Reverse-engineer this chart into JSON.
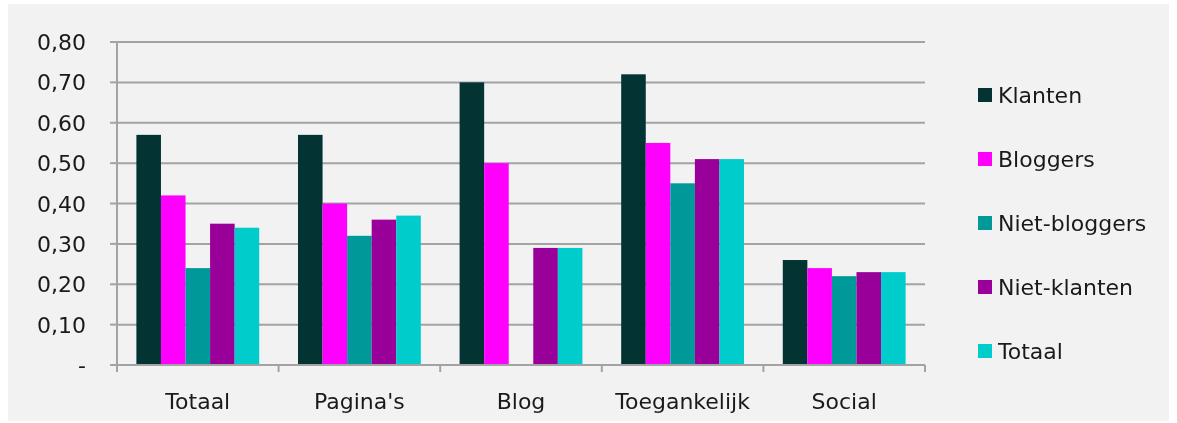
{
  "chart_data": {
    "type": "bar",
    "categories": [
      "Totaal",
      "Pagina's",
      "Blog",
      "Toegankelijk",
      "Social"
    ],
    "series": [
      {
        "name": "Klanten",
        "color": "#033333",
        "values": [
          0.57,
          0.57,
          0.7,
          0.72,
          0.26
        ]
      },
      {
        "name": "Bloggers",
        "color": "#ff00ff",
        "values": [
          0.42,
          0.4,
          0.5,
          0.55,
          0.24
        ]
      },
      {
        "name": "Niet-bloggers",
        "color": "#009999",
        "values": [
          0.24,
          0.32,
          null,
          0.45,
          0.22
        ]
      },
      {
        "name": "Niet-klanten",
        "color": "#990099",
        "values": [
          0.35,
          0.36,
          0.29,
          0.51,
          0.23
        ]
      },
      {
        "name": "Totaal",
        "color": "#00cccc",
        "values": [
          0.34,
          0.37,
          0.29,
          0.51,
          0.23
        ]
      }
    ],
    "ylim": [
      0,
      0.8
    ],
    "yticks": [
      {
        "value": 0,
        "label": "-"
      },
      {
        "value": 0.1,
        "label": "0,10"
      },
      {
        "value": 0.2,
        "label": "0,20"
      },
      {
        "value": 0.3,
        "label": "0,30"
      },
      {
        "value": 0.4,
        "label": "0,40"
      },
      {
        "value": 0.5,
        "label": "0,50"
      },
      {
        "value": 0.6,
        "label": "0,60"
      },
      {
        "value": 0.7,
        "label": "0,70"
      },
      {
        "value": 0.8,
        "label": "0,80"
      }
    ],
    "grid": "y",
    "legend": "right"
  }
}
